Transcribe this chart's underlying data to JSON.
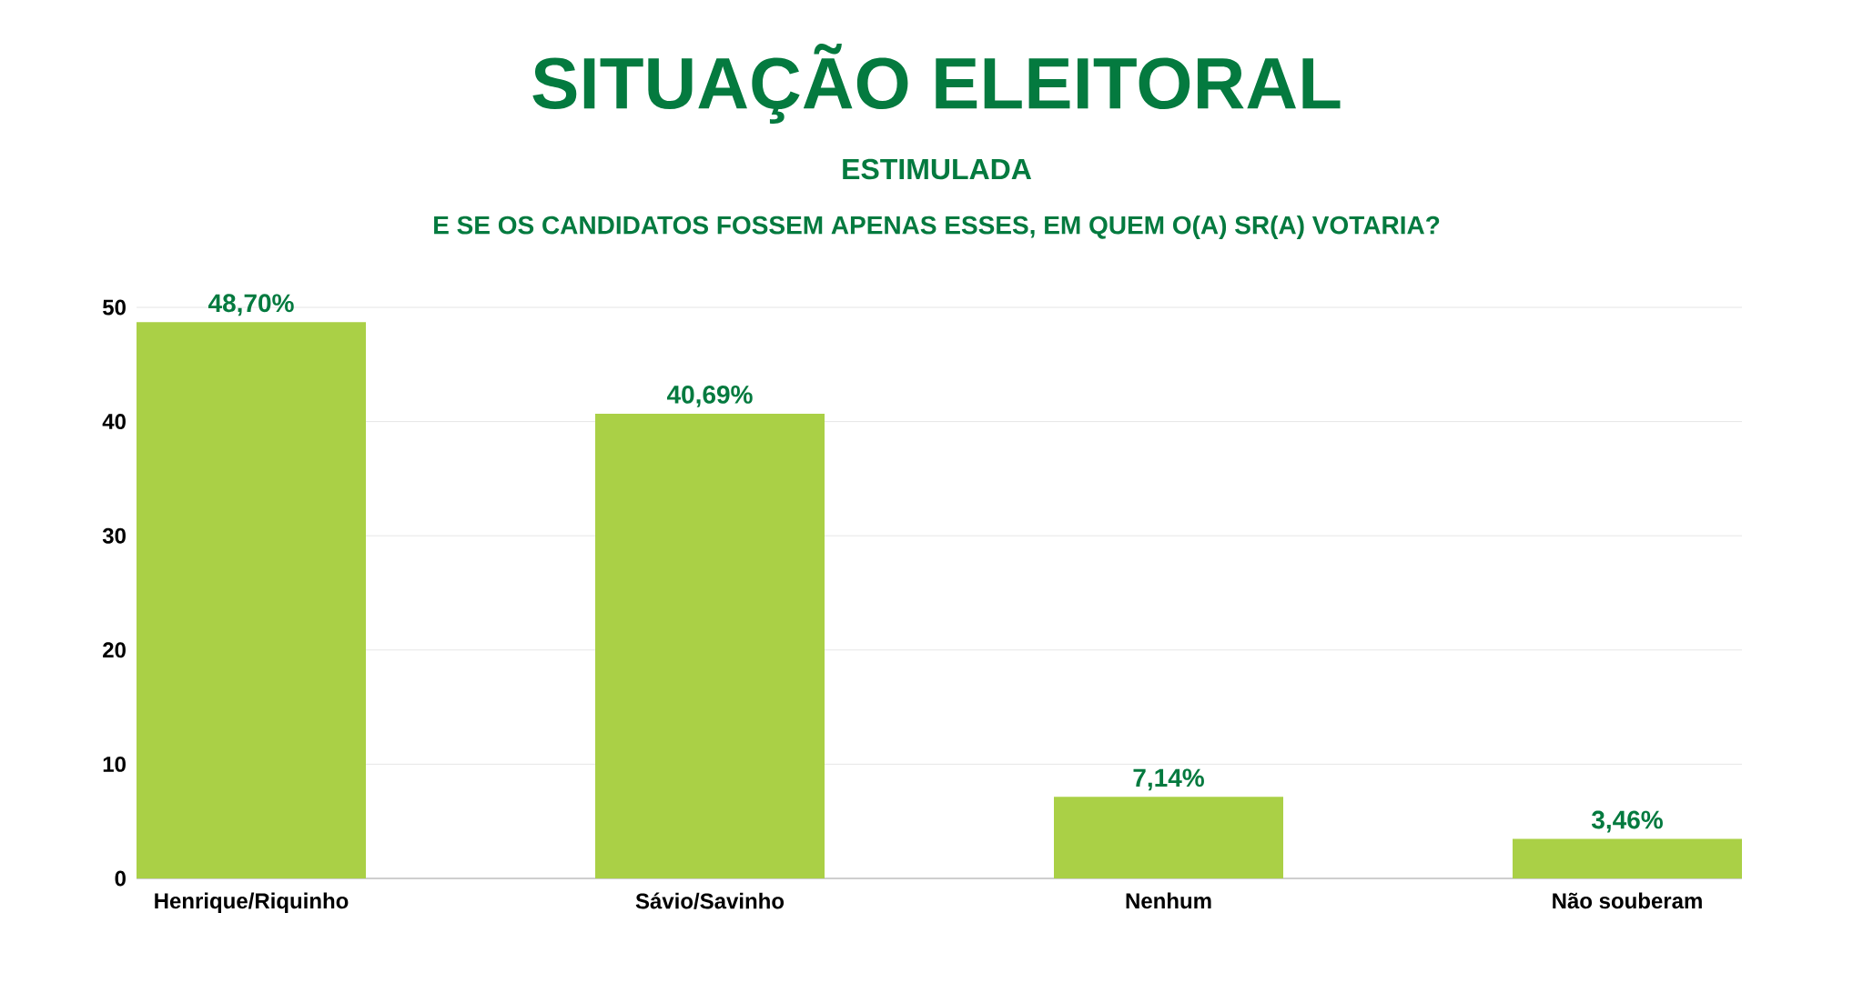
{
  "chart_data": {
    "type": "bar",
    "title": "SITUAÇÃO ELEITORAL",
    "subtitle": "ESTIMULADA",
    "annotations": [
      "E SE OS CANDIDATOS FOSSEM APENAS ESSES, EM QUEM O(A) SR(A) VOTARIA?"
    ],
    "categories": [
      "Henrique/Riquinho",
      "Sávio/Savinho",
      "Nenhum",
      "Não souberam"
    ],
    "values": [
      48.7,
      40.69,
      7.14,
      3.46
    ],
    "value_labels": [
      "48,70%",
      "40,69%",
      "7,14%",
      "3,46%"
    ],
    "color": "#aad046",
    "ylim": [
      0,
      50
    ],
    "yticks": [
      0,
      10,
      20,
      30,
      40,
      50
    ],
    "grid": "y"
  }
}
